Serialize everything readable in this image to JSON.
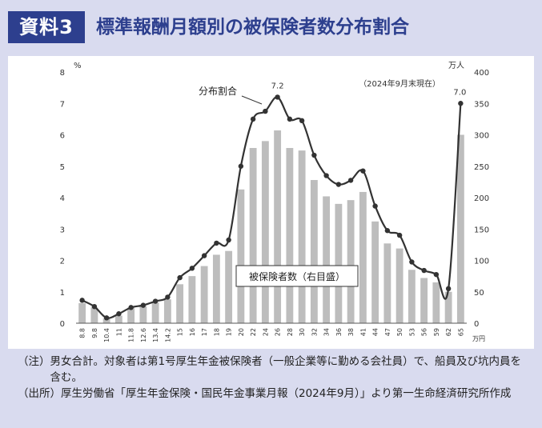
{
  "header": {
    "badge": "資料3",
    "title": "標準報酬月額別の被保険者数分布割合"
  },
  "chart_data": {
    "type": "bar+line",
    "categories": [
      "8.8",
      "9.8",
      "10.4",
      "11",
      "11.8",
      "12.6",
      "13.4",
      "14.2",
      "15",
      "16",
      "17",
      "18",
      "19",
      "20",
      "22",
      "24",
      "26",
      "28",
      "30",
      "32",
      "34",
      "36",
      "38",
      "41",
      "44",
      "47",
      "50",
      "53",
      "56",
      "59",
      "62",
      "65"
    ],
    "x_unit": "万円",
    "series": [
      {
        "name": "被保険者数（右目盛）",
        "axis": "right",
        "type": "bar",
        "values": [
          32,
          25,
          8,
          12,
          25,
          27,
          33,
          38,
          62,
          75,
          91,
          109,
          115,
          213,
          279,
          290,
          307,
          279,
          275,
          228,
          202,
          190,
          196,
          209,
          162,
          127,
          119,
          85,
          72,
          65,
          50,
          300
        ]
      },
      {
        "name": "分布割合",
        "axis": "left",
        "type": "line",
        "values": [
          0.73,
          0.53,
          0.17,
          0.3,
          0.5,
          0.57,
          0.7,
          0.83,
          1.45,
          1.75,
          2.15,
          2.55,
          2.65,
          5.0,
          6.5,
          6.75,
          7.2,
          6.5,
          6.45,
          5.35,
          4.7,
          4.42,
          4.55,
          4.85,
          3.73,
          2.95,
          2.8,
          1.95,
          1.68,
          1.55,
          1.1,
          7.0
        ]
      }
    ],
    "y_left": {
      "unit": "%",
      "min": 0,
      "max": 8,
      "ticks": [
        0,
        1,
        2,
        3,
        4,
        5,
        6,
        7,
        8
      ]
    },
    "y_right": {
      "unit": "万人",
      "min": 0,
      "max": 400,
      "ticks": [
        0,
        50,
        100,
        150,
        200,
        250,
        300,
        350,
        400
      ]
    },
    "annotations": {
      "date_note": "（2024年9月末現在）",
      "line_label": "分布割合",
      "bar_label": "被保険者数（右目盛）",
      "peak_label": "7.2",
      "end_label": "7.0"
    },
    "colors": {
      "bar": "#bdbdbd",
      "line": "#333333"
    }
  },
  "notes": [
    {
      "head": "（注）",
      "text": "男女合計。対象者は第1号厚生年金被保険者（一般企業等に勤める会社員）で、船員及び坑内員を含む。"
    },
    {
      "head": "（出所）",
      "text": "厚生労働省「厚生年金保険・国民年金事業月報（2024年9月）」より第一生命経済研究所作成"
    }
  ]
}
